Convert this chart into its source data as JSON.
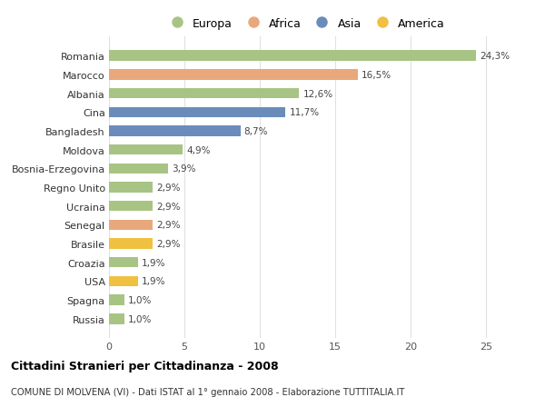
{
  "countries": [
    "Russia",
    "Spagna",
    "USA",
    "Croazia",
    "Brasile",
    "Senegal",
    "Ucraina",
    "Regno Unito",
    "Bosnia-Erzegovina",
    "Moldova",
    "Bangladesh",
    "Cina",
    "Albania",
    "Marocco",
    "Romania"
  ],
  "values": [
    1.0,
    1.0,
    1.9,
    1.9,
    2.9,
    2.9,
    2.9,
    2.9,
    3.9,
    4.9,
    8.7,
    11.7,
    12.6,
    16.5,
    24.3
  ],
  "labels": [
    "1,0%",
    "1,0%",
    "1,9%",
    "1,9%",
    "2,9%",
    "2,9%",
    "2,9%",
    "2,9%",
    "3,9%",
    "4,9%",
    "8,7%",
    "11,7%",
    "12,6%",
    "16,5%",
    "24,3%"
  ],
  "continents": [
    "Europa",
    "Europa",
    "America",
    "Europa",
    "America",
    "Africa",
    "Europa",
    "Europa",
    "Europa",
    "Europa",
    "Asia",
    "Asia",
    "Europa",
    "Africa",
    "Europa"
  ],
  "colors": {
    "Europa": "#a8c484",
    "Africa": "#e8a87c",
    "Asia": "#6b8cba",
    "America": "#f0c040"
  },
  "legend_order": [
    "Europa",
    "Africa",
    "Asia",
    "America"
  ],
  "title": "Cittadini Stranieri per Cittadinanza - 2008",
  "subtitle": "COMUNE DI MOLVENA (VI) - Dati ISTAT al 1° gennaio 2008 - Elaborazione TUTTITALIA.IT",
  "xlim": [
    0,
    26
  ],
  "xticks": [
    0,
    5,
    10,
    15,
    20,
    25
  ],
  "background_color": "#ffffff",
  "grid_color": "#e0e0e0"
}
